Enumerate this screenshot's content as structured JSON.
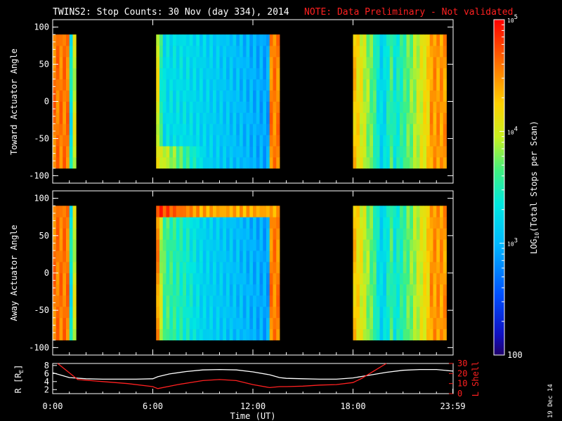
{
  "title": {
    "main": "TWINS2: Stop Counts: 30 Nov (day 334), 2014",
    "note": "NOTE: Data Preliminary - Not validated"
  },
  "colors": {
    "background": "#000000",
    "foreground": "#ffffff",
    "note": "#ff2020",
    "lshell": "#ff2020",
    "radius": "#ffffff"
  },
  "colorbar": {
    "label": "LOG10(Total Stops per Scan)",
    "label_base": "LOG",
    "label_sub": "10",
    "label_rest": "(Total Stops per Scan)",
    "range": [
      100,
      100000
    ],
    "ticks": [
      {
        "value": 100,
        "label": "100"
      },
      {
        "value": 1000,
        "base": "10",
        "exp": "3"
      },
      {
        "value": 10000,
        "base": "10",
        "exp": "4"
      },
      {
        "value": 100000,
        "base": "10",
        "exp": "5"
      }
    ]
  },
  "date_stamp": "19 Dec 14",
  "chart_data": [
    {
      "type": "heatmap",
      "name": "toward",
      "ylabel": "Toward Actuator Angle",
      "ylim": [
        -110,
        110
      ],
      "yticks": [
        100,
        50,
        0,
        -50,
        -100
      ],
      "xlim": [
        0,
        24
      ],
      "data_angle_range": [
        -90,
        90
      ],
      "coverage_hours": [
        [
          0.0,
          1.4
        ],
        [
          6.2,
          13.6
        ],
        [
          18.0,
          23.6
        ]
      ]
    },
    {
      "type": "heatmap",
      "name": "away",
      "ylabel": "Away Actuator Angle",
      "ylim": [
        -110,
        110
      ],
      "yticks": [
        100,
        50,
        0,
        -50,
        -100
      ],
      "xlim": [
        0,
        24
      ],
      "data_angle_range": [
        -90,
        90
      ],
      "coverage_hours": [
        [
          0.0,
          1.4
        ],
        [
          6.2,
          13.6
        ],
        [
          18.0,
          23.6
        ]
      ]
    },
    {
      "type": "line",
      "name": "orbit",
      "xlabel": "Time (UT)",
      "xticks": [
        {
          "value": 0,
          "label": "0:00"
        },
        {
          "value": 6,
          "label": "6:00"
        },
        {
          "value": 12,
          "label": "12:00"
        },
        {
          "value": 18,
          "label": "18:00"
        },
        {
          "value": 23.98,
          "label": "23:59"
        }
      ],
      "xlim": [
        0,
        24
      ],
      "left_axis": {
        "label": "R [R",
        "label_sub": "E",
        "label_end": "]",
        "ylim": [
          1,
          8.5
        ],
        "ticks": [
          2,
          4,
          6,
          8
        ]
      },
      "right_axis": {
        "label": "L Shell",
        "ylim": [
          0,
          30
        ],
        "ticks": [
          0,
          10,
          20,
          30
        ]
      },
      "series": [
        {
          "name": "R",
          "axis": "left",
          "x": [
            0,
            1,
            2,
            3,
            4,
            5,
            6,
            6.3,
            7,
            8,
            9,
            10,
            11,
            12,
            13,
            13.6,
            14,
            15,
            16,
            17,
            18,
            19,
            20,
            21,
            22,
            23,
            24
          ],
          "y": [
            6.2,
            5.0,
            4.7,
            4.6,
            4.6,
            4.6,
            4.7,
            5.2,
            5.9,
            6.5,
            6.9,
            7.0,
            6.9,
            6.4,
            5.7,
            5.0,
            4.8,
            4.7,
            4.6,
            4.6,
            4.9,
            5.6,
            6.3,
            6.8,
            7.0,
            7.0,
            6.6
          ]
        },
        {
          "name": "L Shell",
          "axis": "right",
          "x": [
            0.3,
            1.5,
            3,
            4.5,
            6,
            6.3,
            7.5,
            9,
            10,
            11,
            12,
            13,
            13.6,
            14,
            15,
            16,
            17,
            18,
            18.5,
            19.5,
            20
          ],
          "y": [
            30,
            14,
            12,
            10,
            7,
            5,
            9,
            13,
            14,
            13,
            9,
            6,
            7,
            7,
            7.5,
            8.5,
            9,
            11,
            15,
            25,
            31
          ]
        }
      ]
    }
  ]
}
